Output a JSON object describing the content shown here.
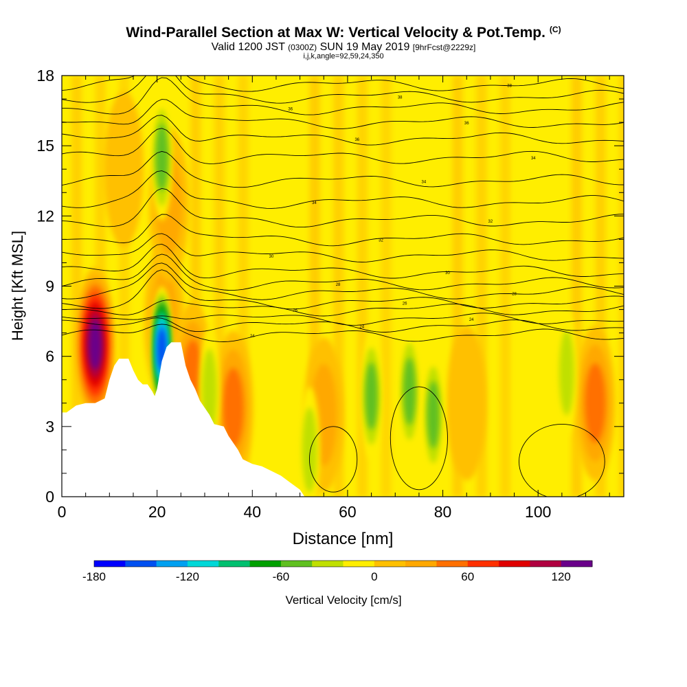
{
  "title": {
    "main": "Wind-Parallel Section at Max W: Vertical Velocity & Pot.Temp.",
    "copyright": "(C)",
    "valid_prefix": "Valid 1200 JST",
    "valid_utc": "(0300Z)",
    "valid_date": "SUN 19 May 2019",
    "forecast": "[9hrFcst@2229z]",
    "indices": "i,j,k,angle=92,59,24,350"
  },
  "chart_data": {
    "type": "heatmap",
    "xlabel": "Distance [nm]",
    "ylabel": "Height [Kft MSL]",
    "xlim": [
      0,
      118
    ],
    "ylim": [
      0,
      18
    ],
    "x_ticks": [
      "0",
      "20",
      "40",
      "60",
      "80",
      "100"
    ],
    "y_ticks": [
      "0",
      "3",
      "6",
      "9",
      "12",
      "15",
      "18"
    ],
    "colorbar": {
      "label": "Vertical Velocity [cm/s]",
      "ticks": [
        "-180",
        "-120",
        "-60",
        "0",
        "60",
        "120"
      ],
      "range": [
        -180,
        140
      ],
      "step": 20,
      "colors": [
        "#0000ff",
        "#0050f0",
        "#00a0f0",
        "#00d8d8",
        "#00c070",
        "#00a000",
        "#60c020",
        "#c0e000",
        "#ffee00",
        "#ffc000",
        "#ffa800",
        "#ff7000",
        "#ff3000",
        "#e00000",
        "#b00040",
        "#6a008a"
      ]
    },
    "terrain_profile": [
      [
        0,
        3.6
      ],
      [
        1,
        3.6
      ],
      [
        3,
        3.9
      ],
      [
        5,
        4.0
      ],
      [
        7,
        4.0
      ],
      [
        9,
        4.2
      ],
      [
        10,
        5.0
      ],
      [
        11,
        5.6
      ],
      [
        12,
        5.9
      ],
      [
        14,
        5.9
      ],
      [
        15,
        5.4
      ],
      [
        16,
        5.0
      ],
      [
        17,
        4.8
      ],
      [
        18,
        4.8
      ],
      [
        19,
        4.5
      ],
      [
        19.5,
        4.3
      ],
      [
        20,
        4.6
      ],
      [
        21,
        5.8
      ],
      [
        22,
        6.4
      ],
      [
        23,
        6.6
      ],
      [
        25,
        6.6
      ],
      [
        26,
        5.6
      ],
      [
        27,
        5.0
      ],
      [
        28,
        4.6
      ],
      [
        29,
        4.1
      ],
      [
        30,
        3.8
      ],
      [
        31,
        3.5
      ],
      [
        32,
        3.1
      ],
      [
        34,
        3.0
      ],
      [
        35,
        2.6
      ],
      [
        36,
        2.3
      ],
      [
        37,
        2.0
      ],
      [
        38,
        1.6
      ],
      [
        40,
        1.4
      ],
      [
        42,
        1.3
      ],
      [
        44,
        1.1
      ],
      [
        46,
        0.9
      ],
      [
        48,
        0.6
      ],
      [
        50,
        0.3
      ],
      [
        51,
        0
      ]
    ],
    "updraft_cores": [
      {
        "x": 7,
        "y": 6.5,
        "w": 130
      },
      {
        "x": 21.5,
        "y": 7.5,
        "w": 40
      },
      {
        "x": 22.5,
        "y": 12.5,
        "w": 40
      },
      {
        "x": 27.5,
        "y": 5.0,
        "w": 50
      },
      {
        "x": 36,
        "y": 3.8,
        "w": 60
      },
      {
        "x": 13,
        "y": 14.0,
        "w": 25
      },
      {
        "x": 112,
        "y": 4.0,
        "w": 50
      },
      {
        "x": 55,
        "y": 3.5,
        "w": 30
      },
      {
        "x": 85,
        "y": 4.0,
        "w": 20
      }
    ],
    "downdraft_cores": [
      {
        "x": 21,
        "y": 6.3,
        "w": -150
      },
      {
        "x": 21,
        "y": 14.5,
        "w": -60
      },
      {
        "x": 31,
        "y": 4.5,
        "w": -40
      },
      {
        "x": 52,
        "y": 2.0,
        "w": -30
      },
      {
        "x": 65,
        "y": 4.3,
        "w": -60
      },
      {
        "x": 73,
        "y": 4.5,
        "w": -60
      },
      {
        "x": 78,
        "y": 3.5,
        "w": -60
      },
      {
        "x": 106,
        "y": 5.3,
        "w": -30
      }
    ],
    "isentrope_labels": [
      "24",
      "24",
      "24",
      "26",
      "26",
      "28",
      "28",
      "30",
      "30",
      "32",
      "32",
      "34",
      "34",
      "34",
      "36",
      "36",
      "36",
      "38",
      "38",
      "38",
      "40",
      "40"
    ]
  }
}
